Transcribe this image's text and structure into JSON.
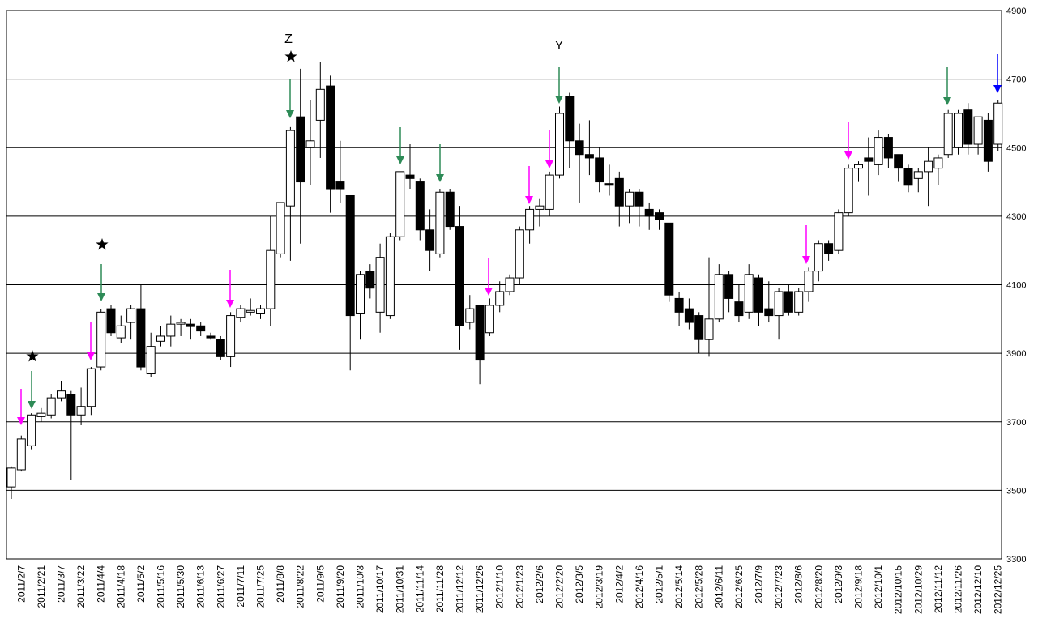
{
  "chart_data": {
    "type": "candlestick",
    "categories": [
      null,
      "2011/2/7",
      null,
      "2011/2/21",
      null,
      "2011/3/7",
      null,
      "2011/3/22",
      null,
      "2011/4/4",
      null,
      "2011/4/18",
      null,
      "2011/5/2",
      null,
      "2011/5/16",
      null,
      "2011/5/30",
      null,
      "2011/6/13",
      null,
      "2011/6/27",
      null,
      "2011/7/11",
      null,
      "2011/7/25",
      null,
      "2011/8/8",
      null,
      "2011/8/22",
      null,
      "2011/9/5",
      null,
      "2011/9/20",
      null,
      "2011/10/3",
      null,
      "2011/10/17",
      null,
      "2011/10/31",
      null,
      "2011/11/14",
      null,
      "2011/11/28",
      null,
      "2011/12/12",
      null,
      "2011/12/26",
      null,
      "2012/1/10",
      null,
      "2012/1/23",
      null,
      "2012/2/6",
      null,
      "2012/2/20",
      null,
      "2012/3/5",
      null,
      "2012/3/19",
      null,
      "2012/4/2",
      null,
      "2012/4/16",
      null,
      "2012/5/1",
      null,
      "2012/5/14",
      null,
      "2012/5/28",
      null,
      "2012/6/11",
      null,
      "2012/6/25",
      null,
      "2012/7/9",
      null,
      "2012/7/23",
      null,
      "2012/8/6",
      null,
      "2012/8/20",
      null,
      "2012/9/3",
      null,
      "2012/9/18",
      null,
      "2012/10/1",
      null,
      "2012/10/15",
      null,
      "2012/10/29",
      null,
      "2012/11/12",
      null,
      "2012/11/26",
      null,
      "2012/12/10",
      null,
      "2012/12/25"
    ],
    "open": [
      3510,
      3560,
      3630,
      3715,
      3720,
      3770,
      3780,
      3720,
      3745,
      3860,
      4030,
      3945,
      3990,
      4030,
      3840,
      3935,
      3950,
      3985,
      3985,
      3980,
      3950,
      3940,
      3890,
      4005,
      4020,
      4015,
      4030,
      4190,
      4330,
      4590,
      4500,
      4580,
      4680,
      4400,
      4360,
      4015,
      4140,
      4020,
      4010,
      4240,
      4420,
      4400,
      4260,
      4190,
      4370,
      4270,
      3990,
      4040,
      3960,
      4040,
      4080,
      4120,
      4260,
      4320,
      4320,
      4420,
      4650,
      4520,
      4480,
      4470,
      4395,
      4410,
      4330,
      4370,
      4320,
      4310,
      4280,
      4060,
      4030,
      4010,
      3940,
      4000,
      4130,
      4050,
      4020,
      4120,
      4030,
      4010,
      4080,
      4020,
      4080,
      4140,
      4220,
      4200,
      4310,
      4440,
      4470,
      4450,
      4530,
      4480,
      4440,
      4410,
      4430,
      4440,
      4480,
      4500,
      4610,
      4510,
      4580,
      4510
    ],
    "high": [
      3570,
      3660,
      3725,
      3740,
      3780,
      3820,
      3790,
      3800,
      3860,
      4030,
      4040,
      4010,
      4040,
      4100,
      3960,
      3980,
      4010,
      4000,
      4000,
      3990,
      3960,
      3950,
      4020,
      4040,
      4060,
      4040,
      4300,
      4340,
      4560,
      4730,
      4640,
      4750,
      4710,
      4520,
      4360,
      4140,
      4160,
      4220,
      4250,
      4430,
      4510,
      4410,
      4320,
      4380,
      4380,
      4330,
      4070,
      4040,
      4060,
      4110,
      4130,
      4270,
      4330,
      4350,
      4430,
      4620,
      4660,
      4570,
      4580,
      4500,
      4450,
      4430,
      4380,
      4380,
      4340,
      4320,
      4280,
      4080,
      4060,
      4020,
      4180,
      4160,
      4140,
      4100,
      4160,
      4130,
      4110,
      4090,
      4100,
      4090,
      4150,
      4230,
      4230,
      4320,
      4450,
      4460,
      4530,
      4550,
      4540,
      4480,
      4450,
      4440,
      4500,
      4480,
      4610,
      4610,
      4630,
      4590,
      4600,
      4640
    ],
    "low": [
      3475,
      3555,
      3620,
      3700,
      3710,
      3760,
      3530,
      3690,
      3720,
      3850,
      3950,
      3930,
      3940,
      3850,
      3830,
      3920,
      3920,
      3950,
      3940,
      3950,
      3940,
      3880,
      3860,
      3990,
      4010,
      4000,
      3980,
      4180,
      4170,
      4220,
      4390,
      4470,
      4310,
      4340,
      3850,
      3940,
      4060,
      3960,
      4000,
      4230,
      4380,
      4230,
      4140,
      4180,
      4260,
      3910,
      3970,
      3810,
      3950,
      4020,
      4070,
      4100,
      4220,
      4270,
      4300,
      4410,
      4440,
      4340,
      4420,
      4370,
      4360,
      4270,
      4280,
      4270,
      4260,
      4260,
      4050,
      3980,
      3970,
      3900,
      3890,
      3990,
      4020,
      3990,
      4000,
      3980,
      3990,
      3940,
      4010,
      4010,
      4050,
      4110,
      4170,
      4190,
      4300,
      4400,
      4360,
      4420,
      4440,
      4400,
      4370,
      4370,
      4330,
      4390,
      4470,
      4480,
      4480,
      4480,
      4430,
      4490
    ],
    "close": [
      3565,
      3650,
      3720,
      3725,
      3770,
      3790,
      3720,
      3745,
      3855,
      4020,
      3960,
      3980,
      4030,
      3860,
      3920,
      3950,
      3985,
      3990,
      3978,
      3965,
      3945,
      3890,
      4010,
      4030,
      4025,
      4030,
      4200,
      4340,
      4550,
      4400,
      4520,
      4670,
      4380,
      4380,
      4010,
      4130,
      4090,
      4180,
      4240,
      4430,
      4410,
      4260,
      4200,
      4370,
      4270,
      3980,
      4030,
      3880,
      4040,
      4080,
      4120,
      4260,
      4320,
      4330,
      4420,
      4600,
      4520,
      4480,
      4470,
      4400,
      4390,
      4330,
      4370,
      4330,
      4300,
      4290,
      4070,
      4020,
      3990,
      3940,
      4000,
      4130,
      4060,
      4010,
      4130,
      4020,
      4010,
      4080,
      4020,
      4080,
      4140,
      4220,
      4190,
      4310,
      4440,
      4450,
      4460,
      4530,
      4470,
      4440,
      4390,
      4430,
      4460,
      4470,
      4600,
      4600,
      4510,
      4590,
      4460,
      4630
    ],
    "ylim": [
      3300,
      4900
    ],
    "yticks": [
      3300,
      3500,
      3700,
      3900,
      4100,
      4300,
      4500,
      4700,
      4900
    ],
    "grid": true,
    "up_color": "#ffffff",
    "down_color": "#000000",
    "annotations": [
      "Z",
      "Y"
    ]
  }
}
